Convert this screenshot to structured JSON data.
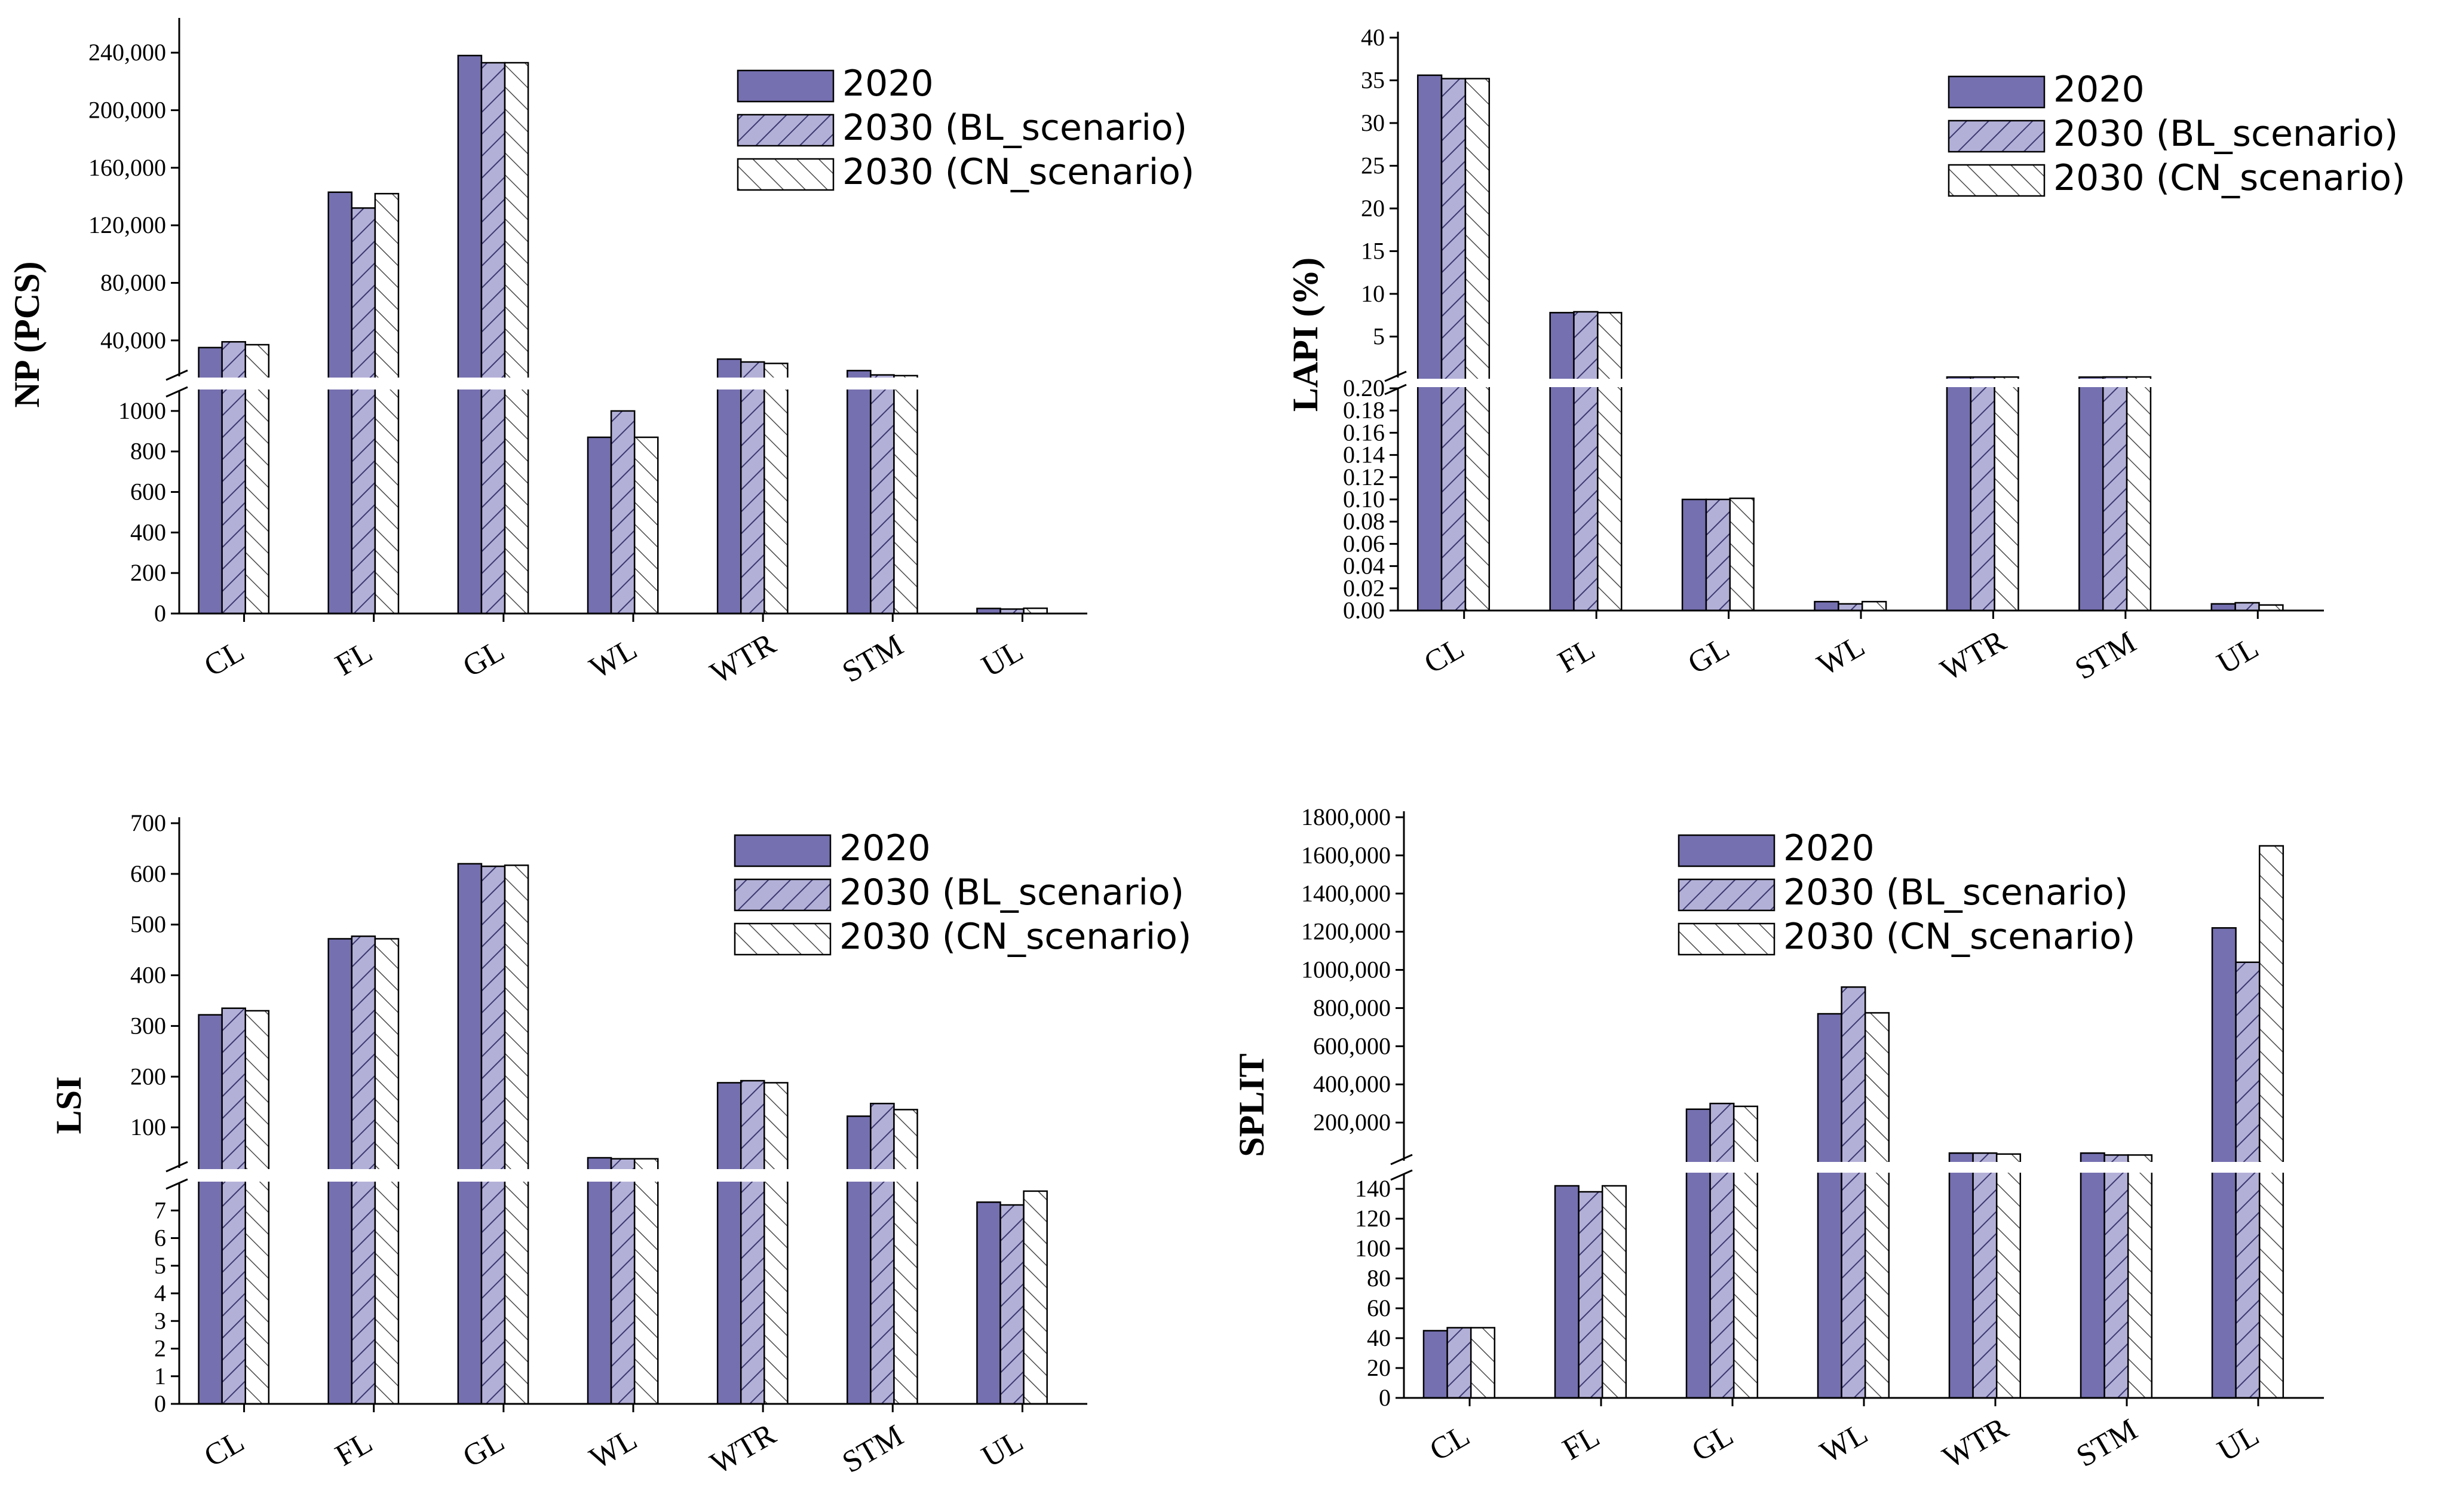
{
  "chart_data": [
    {
      "type": "bar",
      "ylabel": "NP (PCS)",
      "categories": [
        "CL",
        "FL",
        "GL",
        "WL",
        "WTR",
        "STM",
        "UL"
      ],
      "series": [
        {
          "name": "2020",
          "values": [
            35000,
            143000,
            238000,
            870,
            27000,
            19000,
            25
          ]
        },
        {
          "name": "2030 (BL_scenario)",
          "values": [
            39000,
            132000,
            233000,
            1000,
            25000,
            16000,
            22
          ]
        },
        {
          "name": "2030 (CN_scenario)",
          "values": [
            37000,
            142000,
            233000,
            870,
            24000,
            15500,
            26
          ]
        }
      ],
      "y_break": {
        "lower": {
          "range": [
            0,
            1100
          ],
          "ticks": [
            0,
            200,
            400,
            600,
            800,
            1000
          ],
          "labels": [
            "0",
            "200",
            "400",
            "600",
            "800",
            "1000"
          ]
        },
        "upper": {
          "range": [
            15000,
            260000
          ],
          "ticks": [
            40000,
            80000,
            120000,
            160000,
            200000,
            240000
          ],
          "labels": [
            "40,000",
            "80,000",
            "120,000",
            "160,000",
            "200,000",
            "240,000"
          ]
        }
      },
      "legend_position": "top-right"
    },
    {
      "type": "bar",
      "ylabel": "LAPI (%)",
      "categories": [
        "CL",
        "FL",
        "GL",
        "WL",
        "WTR",
        "STM",
        "UL"
      ],
      "series": [
        {
          "name": "2020",
          "values": [
            35.6,
            7.8,
            0.1,
            0.008,
            0.26,
            0.25,
            0.006
          ]
        },
        {
          "name": "2030 (BL_scenario)",
          "values": [
            35.2,
            7.9,
            0.1,
            0.006,
            0.26,
            0.27,
            0.007
          ]
        },
        {
          "name": "2030 (CN_scenario)",
          "values": [
            35.2,
            7.8,
            0.101,
            0.008,
            0.26,
            0.27,
            0.005
          ]
        }
      ],
      "y_break": {
        "lower": {
          "range": [
            0,
            0.2
          ],
          "ticks": [
            0,
            0.02,
            0.04,
            0.06,
            0.08,
            0.1,
            0.12,
            0.14,
            0.16,
            0.18,
            0.2
          ],
          "labels": [
            "0.00",
            "0.02",
            "0.04",
            "0.06",
            "0.08",
            "0.10",
            "0.12",
            "0.14",
            "0.16",
            "0.18",
            "0.20"
          ]
        },
        "upper": {
          "range": [
            0.2,
            40
          ],
          "ticks": [
            5,
            10,
            15,
            20,
            25,
            30,
            35,
            40
          ],
          "labels": [
            "5",
            "10",
            "15",
            "20",
            "25",
            "30",
            "35",
            "40"
          ]
        }
      },
      "legend_position": "top-right"
    },
    {
      "type": "bar",
      "ylabel": "LSI",
      "categories": [
        "CL",
        "FL",
        "GL",
        "WL",
        "WTR",
        "STM",
        "UL"
      ],
      "series": [
        {
          "name": "2020",
          "values": [
            322,
            472,
            620,
            40,
            188,
            122,
            7.3
          ]
        },
        {
          "name": "2030 (BL_scenario)",
          "values": [
            335,
            477,
            615,
            38,
            192,
            147,
            7.2
          ]
        },
        {
          "name": "2030 (CN_scenario)",
          "values": [
            330,
            472,
            617,
            38,
            188,
            135,
            7.7
          ]
        }
      ],
      "y_break": {
        "lower": {
          "range": [
            0,
            8
          ],
          "ticks": [
            0,
            1,
            2,
            3,
            4,
            5,
            6,
            7
          ],
          "labels": [
            "0",
            "1",
            "2",
            "3",
            "4",
            "5",
            "6",
            "7"
          ]
        },
        "upper": {
          "range": [
            20,
            700
          ],
          "ticks": [
            100,
            200,
            300,
            400,
            500,
            600,
            700
          ],
          "labels": [
            "100",
            "200",
            "300",
            "400",
            "500",
            "600",
            "700"
          ]
        }
      },
      "legend_position": "top-right"
    },
    {
      "type": "bar",
      "ylabel": "SPLIT",
      "categories": [
        "CL",
        "FL",
        "GL",
        "WL",
        "WTR",
        "STM",
        "UL"
      ],
      "series": [
        {
          "name": "2020",
          "values": [
            45,
            142,
            270000,
            770000,
            40000,
            40000,
            1220000
          ]
        },
        {
          "name": "2030 (BL_scenario)",
          "values": [
            47,
            138,
            300000,
            910000,
            40000,
            30000,
            1040000
          ]
        },
        {
          "name": "2030 (CN_scenario)",
          "values": [
            47,
            142,
            285000,
            775000,
            35000,
            30000,
            1650000
          ]
        }
      ],
      "y_break": {
        "lower": {
          "range": [
            0,
            150
          ],
          "ticks": [
            0,
            20,
            40,
            60,
            80,
            100,
            120,
            140
          ],
          "labels": [
            "0",
            "20",
            "40",
            "60",
            "80",
            "100",
            "120",
            "140"
          ]
        },
        "upper": {
          "range": [
            0,
            1800000
          ],
          "ticks": [
            200000,
            400000,
            600000,
            800000,
            1000000,
            1200000,
            1400000,
            1600000,
            1800000
          ],
          "labels": [
            "200,000",
            "400,000",
            "600,000",
            "800,000",
            "1000,000",
            "1200,000",
            "1400,000",
            "1600,000",
            "1800,000"
          ]
        }
      },
      "legend_position": "top-right"
    }
  ],
  "colors": {
    "solid": "#7570b0",
    "hatch_bl": "#b3b0d8",
    "stroke": "#000000",
    "break_gap": "#ffffff"
  }
}
